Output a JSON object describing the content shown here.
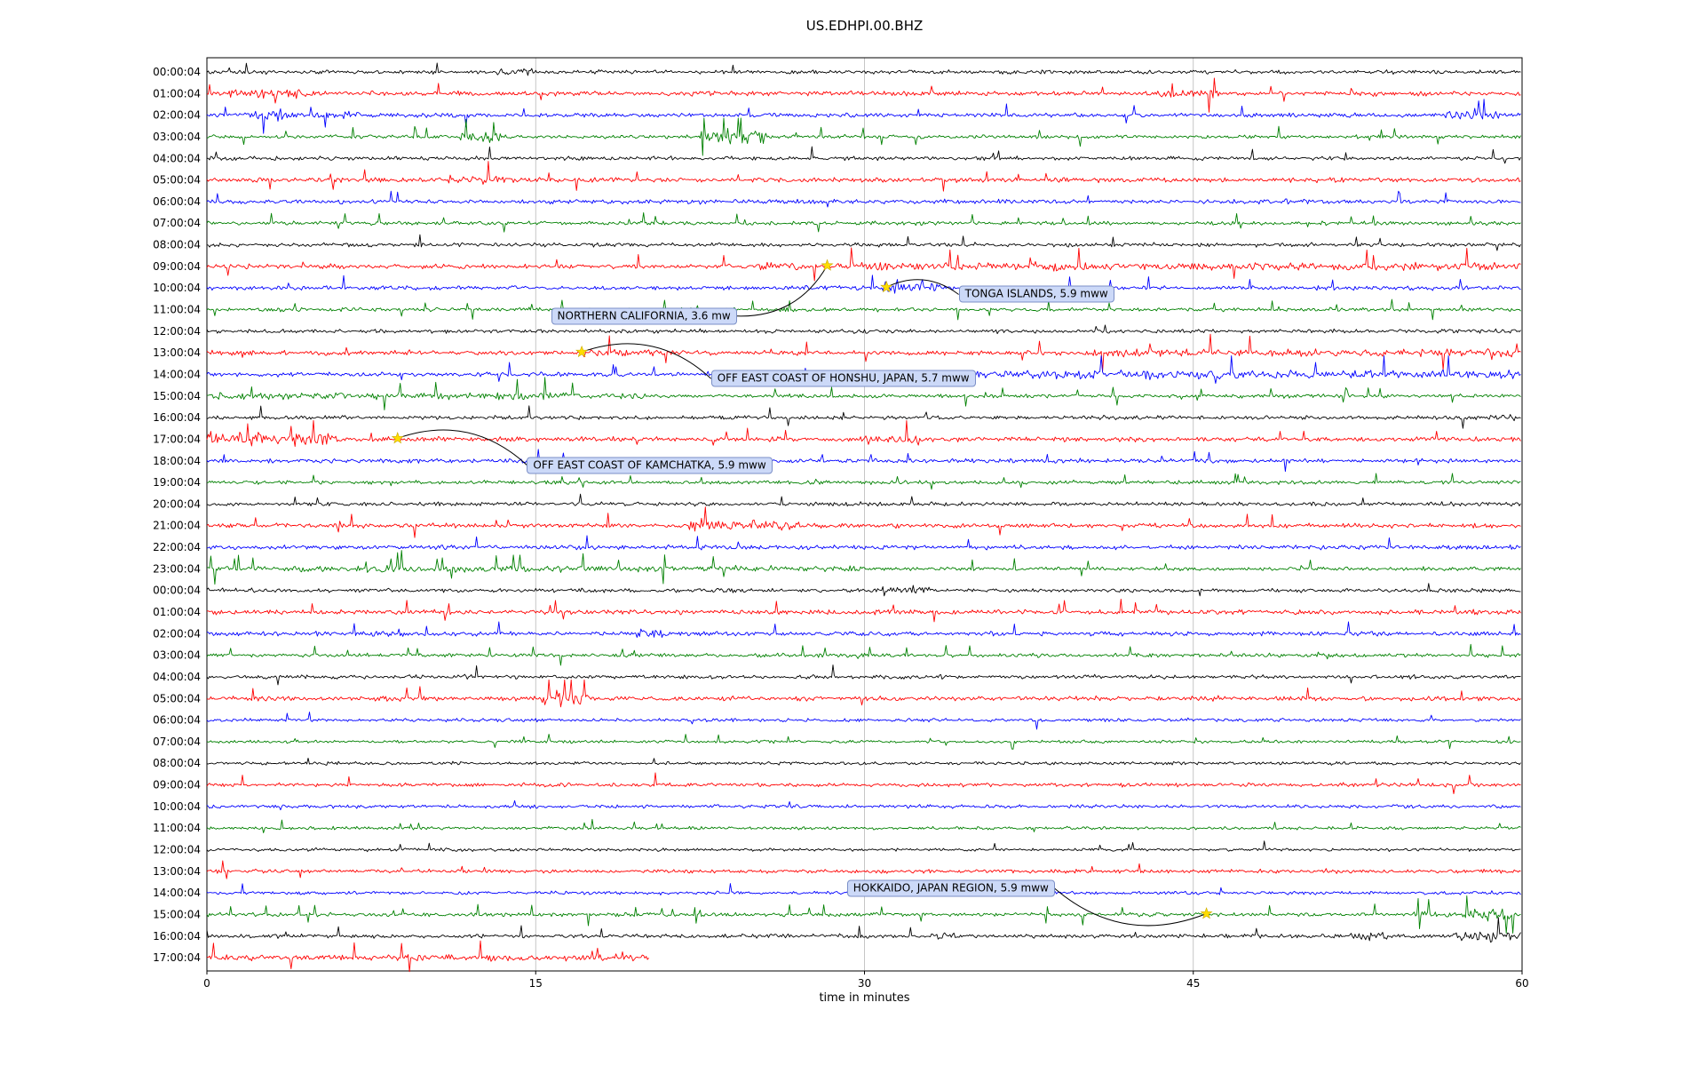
{
  "title": "US.EDHPI.00.BHZ",
  "chart_data": {
    "type": "line",
    "subtype": "seismogram-dayplot",
    "station_id": "US.EDHPI.00.BHZ",
    "xlabel": "time in minutes",
    "x_ticks": [
      0,
      15,
      30,
      45,
      60
    ],
    "x_range": [
      0,
      60
    ],
    "grid": "vertical-only",
    "trace_color_cycle": [
      "#000000",
      "#ff0000",
      "#0000ff",
      "#008000"
    ],
    "rows": [
      {
        "label": "00:00:04",
        "color": "#000000"
      },
      {
        "label": "01:00:04",
        "color": "#ff0000"
      },
      {
        "label": "02:00:04",
        "color": "#0000ff"
      },
      {
        "label": "03:00:04",
        "color": "#008000"
      },
      {
        "label": "04:00:04",
        "color": "#000000"
      },
      {
        "label": "05:00:04",
        "color": "#ff0000"
      },
      {
        "label": "06:00:04",
        "color": "#0000ff"
      },
      {
        "label": "07:00:04",
        "color": "#008000"
      },
      {
        "label": "08:00:04",
        "color": "#000000"
      },
      {
        "label": "09:00:04",
        "color": "#ff0000"
      },
      {
        "label": "10:00:04",
        "color": "#0000ff"
      },
      {
        "label": "11:00:04",
        "color": "#008000"
      },
      {
        "label": "12:00:04",
        "color": "#000000"
      },
      {
        "label": "13:00:04",
        "color": "#ff0000"
      },
      {
        "label": "14:00:04",
        "color": "#0000ff"
      },
      {
        "label": "15:00:04",
        "color": "#008000"
      },
      {
        "label": "16:00:04",
        "color": "#000000"
      },
      {
        "label": "17:00:04",
        "color": "#ff0000"
      },
      {
        "label": "18:00:04",
        "color": "#0000ff"
      },
      {
        "label": "19:00:04",
        "color": "#008000"
      },
      {
        "label": "20:00:04",
        "color": "#000000"
      },
      {
        "label": "21:00:04",
        "color": "#ff0000"
      },
      {
        "label": "22:00:04",
        "color": "#0000ff"
      },
      {
        "label": "23:00:04",
        "color": "#008000"
      },
      {
        "label": "00:00:04",
        "color": "#000000"
      },
      {
        "label": "01:00:04",
        "color": "#ff0000"
      },
      {
        "label": "02:00:04",
        "color": "#0000ff"
      },
      {
        "label": "03:00:04",
        "color": "#008000"
      },
      {
        "label": "04:00:04",
        "color": "#000000"
      },
      {
        "label": "05:00:04",
        "color": "#ff0000"
      },
      {
        "label": "06:00:04",
        "color": "#0000ff"
      },
      {
        "label": "07:00:04",
        "color": "#008000"
      },
      {
        "label": "08:00:04",
        "color": "#000000"
      },
      {
        "label": "09:00:04",
        "color": "#ff0000"
      },
      {
        "label": "10:00:04",
        "color": "#0000ff"
      },
      {
        "label": "11:00:04",
        "color": "#008000"
      },
      {
        "label": "12:00:04",
        "color": "#000000"
      },
      {
        "label": "13:00:04",
        "color": "#ff0000"
      },
      {
        "label": "14:00:04",
        "color": "#0000ff"
      },
      {
        "label": "15:00:04",
        "color": "#008000"
      },
      {
        "label": "16:00:04",
        "color": "#000000"
      },
      {
        "label": "17:00:04",
        "color": "#ff0000"
      }
    ],
    "row_truncation": {
      "row": 41,
      "end_minute": 20.2
    },
    "events": [
      {
        "label": "TONGA ISLANDS, 5.9 mww",
        "star": {
          "row": 10,
          "minute": 31.0
        },
        "box": {
          "minute": 34.3,
          "row": 10.3
        }
      },
      {
        "label": "NORTHERN CALIFORNIA, 3.6 mw",
        "star": {
          "row": 9,
          "minute": 28.3
        },
        "box": {
          "minute": 15.7,
          "row": 11.3
        }
      },
      {
        "label": "OFF EAST COAST OF HONSHU, JAPAN, 5.7 mww",
        "star": {
          "row": 13,
          "minute": 17.1
        },
        "box": {
          "minute": 23.0,
          "row": 14.2
        }
      },
      {
        "label": "OFF EAST COAST OF KAMCHATKA, 5.9 mww",
        "star": {
          "row": 17,
          "minute": 8.7
        },
        "box": {
          "minute": 14.6,
          "row": 18.2
        }
      },
      {
        "label": "HOKKAIDO, JAPAN REGION, 5.9 mww",
        "star": {
          "row": 39,
          "minute": 45.6
        },
        "box": {
          "minute": 29.2,
          "row": 37.8
        }
      }
    ],
    "bursts": [
      [
        0,
        13,
        15,
        2.2
      ],
      [
        1,
        1,
        4.5,
        2.0
      ],
      [
        1,
        43.5,
        46,
        1.8
      ],
      [
        2,
        2,
        3.5,
        2.8
      ],
      [
        2,
        5,
        7,
        2.0
      ],
      [
        2,
        56.5,
        59,
        2.2
      ],
      [
        3,
        11.5,
        13.5,
        2.8
      ],
      [
        3,
        22.5,
        25.5,
        4.5
      ],
      [
        5,
        11,
        14,
        1.8
      ],
      [
        9,
        25,
        60,
        1.7
      ],
      [
        10,
        30.8,
        33.5,
        3.2
      ],
      [
        13,
        17.2,
        21,
        1.5
      ],
      [
        13,
        40,
        58,
        1.6
      ],
      [
        13,
        58.3,
        59.6,
        3.0
      ],
      [
        14,
        34,
        60,
        2.0
      ],
      [
        15,
        0,
        20,
        1.8
      ],
      [
        16,
        58.5,
        60,
        2.3
      ],
      [
        17,
        0,
        6,
        3.2
      ],
      [
        17,
        30,
        32.5,
        2.2
      ],
      [
        21,
        22,
        27,
        2.6
      ],
      [
        23,
        0,
        30,
        1.7
      ],
      [
        24,
        30.8,
        33,
        2.8
      ],
      [
        26,
        7.5,
        9,
        1.8
      ],
      [
        26,
        19.5,
        21,
        2.0
      ],
      [
        29,
        15.3,
        17.5,
        4.2
      ],
      [
        39,
        55,
        57,
        2.0
      ],
      [
        39,
        57.3,
        59.6,
        3.6
      ],
      [
        40,
        33,
        34.2,
        1.8
      ],
      [
        40,
        52,
        54,
        2.6
      ],
      [
        40,
        56.8,
        60,
        3.0
      ],
      [
        41,
        0,
        20,
        1.4
      ]
    ],
    "quiet_rows": [
      30,
      31,
      32,
      33,
      34,
      35,
      36,
      37,
      38
    ],
    "style": {
      "grid_color": "#b8b8b8",
      "axis_color": "#000000",
      "event_box_fill": "#ccd9f8",
      "event_box_border": "#7b8fc7",
      "star_color": "#ffdd00",
      "star_edge": "#c8a800"
    }
  }
}
